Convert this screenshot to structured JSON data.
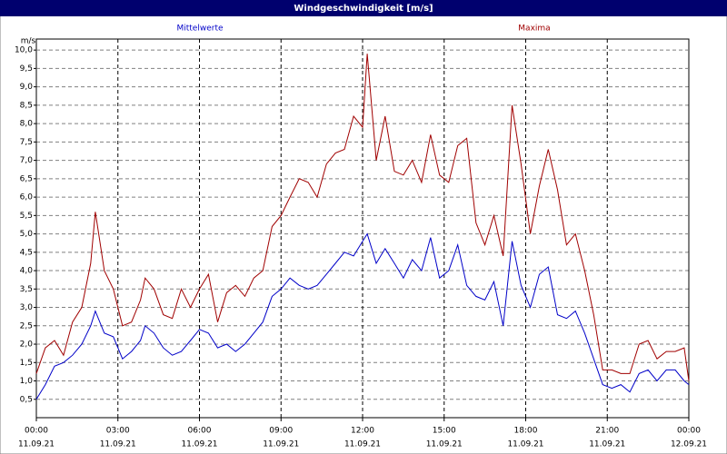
{
  "chart_data": {
    "type": "line",
    "title": "Windgeschwindigkeit [m/s]",
    "y_label": "m/s",
    "x": [
      0,
      0.33,
      0.67,
      1.0,
      1.33,
      1.67,
      2.0,
      2.17,
      2.5,
      2.83,
      3.17,
      3.5,
      3.83,
      4.0,
      4.33,
      4.67,
      5.0,
      5.33,
      5.67,
      6.0,
      6.33,
      6.67,
      7.0,
      7.33,
      7.67,
      8.0,
      8.33,
      8.67,
      9.0,
      9.33,
      9.67,
      10.0,
      10.33,
      10.67,
      11.0,
      11.33,
      11.67,
      12.0,
      12.17,
      12.5,
      12.83,
      13.17,
      13.5,
      13.83,
      14.17,
      14.5,
      14.83,
      15.17,
      15.5,
      15.83,
      16.17,
      16.5,
      16.83,
      17.17,
      17.5,
      17.83,
      18.17,
      18.5,
      18.83,
      19.17,
      19.5,
      19.83,
      20.17,
      20.5,
      20.83,
      21.17,
      21.5,
      21.83,
      22.17,
      22.5,
      22.83,
      23.17,
      23.5,
      23.83,
      24.0
    ],
    "series": [
      {
        "name": "Mittelwerte",
        "color": "#0000c8",
        "values": [
          0.5,
          0.9,
          1.4,
          1.5,
          1.7,
          2.0,
          2.5,
          2.9,
          2.3,
          2.2,
          1.6,
          1.8,
          2.1,
          2.5,
          2.3,
          1.9,
          1.7,
          1.8,
          2.1,
          2.4,
          2.3,
          1.9,
          2.0,
          1.8,
          2.0,
          2.3,
          2.6,
          3.3,
          3.5,
          3.8,
          3.6,
          3.5,
          3.6,
          3.9,
          4.2,
          4.5,
          4.4,
          4.8,
          5.0,
          4.2,
          4.6,
          4.2,
          3.8,
          4.3,
          4.0,
          4.9,
          3.8,
          4.0,
          4.7,
          3.6,
          3.3,
          3.2,
          3.7,
          2.5,
          4.8,
          3.6,
          3.0,
          3.9,
          4.1,
          2.8,
          2.7,
          2.9,
          2.3,
          1.6,
          0.9,
          0.8,
          0.9,
          0.7,
          1.2,
          1.3,
          1.0,
          1.3,
          1.3,
          1.0,
          0.9
        ]
      },
      {
        "name": "Maxima",
        "color": "#a00000",
        "values": [
          1.2,
          1.9,
          2.1,
          1.7,
          2.6,
          3.0,
          4.2,
          5.6,
          4.0,
          3.5,
          2.5,
          2.6,
          3.2,
          3.8,
          3.5,
          2.8,
          2.7,
          3.5,
          3.0,
          3.5,
          3.9,
          2.6,
          3.4,
          3.6,
          3.3,
          3.8,
          4.0,
          5.2,
          5.5,
          6.0,
          6.5,
          6.4,
          6.0,
          6.9,
          7.2,
          7.3,
          8.2,
          7.9,
          9.9,
          7.0,
          8.2,
          6.7,
          6.6,
          7.0,
          6.4,
          7.7,
          6.6,
          6.4,
          7.4,
          7.6,
          5.3,
          4.7,
          5.5,
          4.4,
          8.5,
          6.9,
          5.0,
          6.3,
          7.3,
          6.2,
          4.7,
          5.0,
          4.0,
          2.8,
          1.3,
          1.3,
          1.2,
          1.2,
          2.0,
          2.1,
          1.6,
          1.8,
          1.8,
          1.9,
          1.0
        ]
      }
    ],
    "xlim": [
      0,
      24
    ],
    "xticks": [
      {
        "value": 0,
        "label": "00:00"
      },
      {
        "value": 3,
        "label": "03:00"
      },
      {
        "value": 6,
        "label": "06:00"
      },
      {
        "value": 9,
        "label": "09:00"
      },
      {
        "value": 12,
        "label": "12:00"
      },
      {
        "value": 15,
        "label": "15:00"
      },
      {
        "value": 18,
        "label": "18:00"
      },
      {
        "value": 21,
        "label": "21:00"
      },
      {
        "value": 24,
        "label": "00:00"
      }
    ],
    "xtick_dates": [
      "11.09.21",
      "11.09.21",
      "11.09.21",
      "11.09.21",
      "11.09.21",
      "11.09.21",
      "11.09.21",
      "11.09.21",
      "12.09.21"
    ],
    "ylim": [
      0,
      10.3
    ],
    "yticks": [
      {
        "value": 0.5,
        "label": "0,5"
      },
      {
        "value": 1.0,
        "label": "1,0"
      },
      {
        "value": 1.5,
        "label": "1,5"
      },
      {
        "value": 2.0,
        "label": "2,0"
      },
      {
        "value": 2.5,
        "label": "2,5"
      },
      {
        "value": 3.0,
        "label": "3,0"
      },
      {
        "value": 3.5,
        "label": "3,5"
      },
      {
        "value": 4.0,
        "label": "4,0"
      },
      {
        "value": 4.5,
        "label": "4,5"
      },
      {
        "value": 5.0,
        "label": "5,0"
      },
      {
        "value": 5.5,
        "label": "5,5"
      },
      {
        "value": 6.0,
        "label": "6,0"
      },
      {
        "value": 6.5,
        "label": "6,5"
      },
      {
        "value": 7.0,
        "label": "7,0"
      },
      {
        "value": 7.5,
        "label": "7,5"
      },
      {
        "value": 8.0,
        "label": "8,0"
      },
      {
        "value": 8.5,
        "label": "8,5"
      },
      {
        "value": 9.0,
        "label": "9,0"
      },
      {
        "value": 9.5,
        "label": "9,5"
      },
      {
        "value": 10.0,
        "label": "10,0"
      }
    ],
    "grid": true
  }
}
